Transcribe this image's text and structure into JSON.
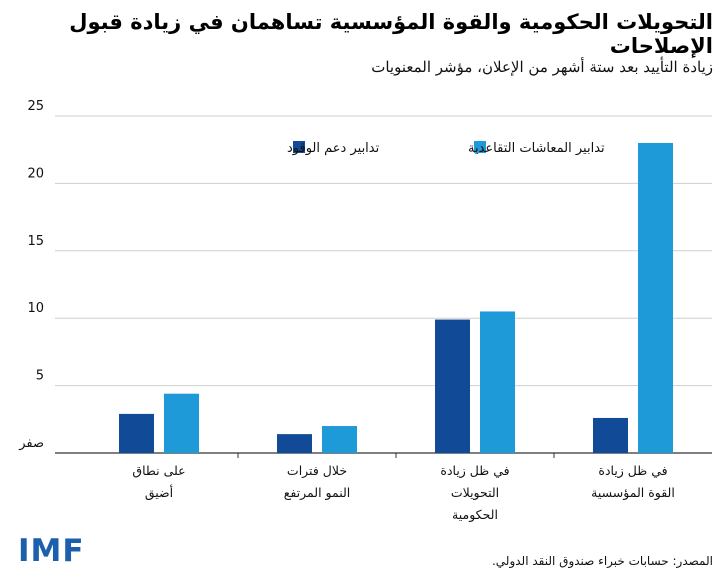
{
  "title": "التحويلات الحكومية والقوة المؤسسية تساهمان في زيادة قبول الإصلاحات",
  "subtitle": "زيادة التأييد بعد ستة أشهر من الإعلان، مؤشر المعنويات",
  "source": "المصدر: حسابات خبراء صندوق النقد الدولي.",
  "logo": "IMF",
  "colors": {
    "dark": "#114a96",
    "light": "#1e9ad8",
    "grid": "#cfcfcf",
    "axis": "#333333"
  },
  "chart_data": {
    "type": "bar",
    "categories": [
      "على نطاق\nأضيق",
      "خلال فترات\nالنمو المرتفع",
      "في ظل زيادة\nالتحويلات\nالحكومية",
      "في ظل زيادة\nالقوة المؤسسية"
    ],
    "series": [
      {
        "name": "تدابير دعم الوقود",
        "color": "#114a96",
        "values": [
          2.9,
          1.4,
          9.9,
          2.6
        ]
      },
      {
        "name": "تدابير المعاشات التقاعدية",
        "color": "#1e9ad8",
        "values": [
          4.4,
          2.0,
          10.5,
          23.0
        ]
      }
    ],
    "ylim": [
      0,
      25
    ],
    "yticks": [
      0,
      5,
      10,
      15,
      20,
      25
    ],
    "ytick_labels": [
      "صفر",
      "5",
      "10",
      "15",
      "20",
      "25"
    ],
    "grid": true,
    "legend": "top"
  }
}
